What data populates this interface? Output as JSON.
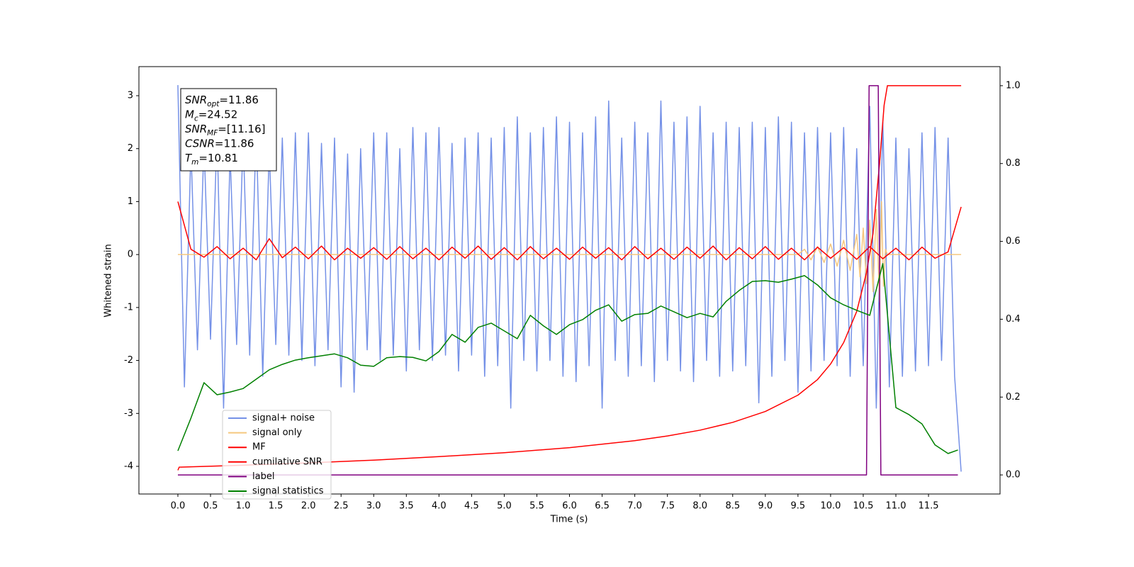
{
  "chart_data": {
    "type": "line",
    "xlabel": "Time (s)",
    "ylabel": "Whitened strain",
    "xlim": [
      -0.597,
      12.596
    ],
    "ylim": [
      -4.522,
      3.549
    ],
    "y2lim": [
      -0.049,
      1.049
    ],
    "xticks": [
      {
        "value": 0,
        "label": "0.0"
      },
      0.5,
      {
        "value": 1,
        "label": "1.0"
      },
      1.5,
      {
        "value": 2,
        "label": "2.0"
      },
      2.5,
      {
        "value": 3,
        "label": "3.0"
      },
      3.5,
      {
        "value": 4,
        "label": "4.0"
      },
      4.5,
      {
        "value": 5,
        "label": "5.0"
      },
      5.5,
      {
        "value": 6,
        "label": "6.0"
      },
      6.5,
      {
        "value": 7,
        "label": "7.0"
      },
      7.5,
      {
        "value": 8,
        "label": "8.0"
      },
      8.5,
      {
        "value": 9,
        "label": "9.0"
      },
      9.5,
      {
        "value": 10,
        "label": "10.0"
      },
      10.5,
      {
        "value": 11,
        "label": "11.0"
      },
      11.5
    ],
    "yticks": [
      -4,
      -3,
      -2,
      -1,
      0,
      1,
      2,
      3
    ],
    "y2ticks": [
      {
        "value": 0,
        "label": "0.0"
      },
      0.2,
      0.4,
      0.6,
      0.8,
      {
        "value": 1,
        "label": "1.0"
      }
    ],
    "legend": "lower left",
    "annotation": [
      {
        "symbol": "SNR",
        "subscript": "opt",
        "text": "=11.86"
      },
      {
        "symbol": "M",
        "subscript": "c",
        "text": "=24.52"
      },
      {
        "symbol": "SNR",
        "subscript": "MF",
        "text": "=[11.16]"
      },
      {
        "symbol": "CSNR",
        "text": "=11.86"
      },
      {
        "symbol": "T",
        "subscript": "m",
        "text": "=10.81"
      }
    ],
    "series": [
      {
        "name": "signal+ noise",
        "color": "#7591e7",
        "x": [
          0,
          0.1,
          0.2,
          0.3,
          0.4,
          0.5,
          0.6,
          0.7,
          0.8,
          0.9,
          1,
          1.1,
          1.2,
          1.3,
          1.4,
          1.5,
          1.6,
          1.7,
          1.8,
          1.9,
          2,
          2.1,
          2.2,
          2.3,
          2.4,
          2.5,
          2.6,
          2.7,
          2.8,
          2.9,
          3,
          3.1,
          3.2,
          3.3,
          3.4,
          3.5,
          3.6,
          3.7,
          3.8,
          3.9,
          4,
          4.1,
          4.2,
          4.3,
          4.4,
          4.5,
          4.6,
          4.7,
          4.8,
          4.9,
          5,
          5.1,
          5.2,
          5.3,
          5.4,
          5.5,
          5.6,
          5.7,
          5.8,
          5.9,
          6,
          6.1,
          6.2,
          6.3,
          6.4,
          6.5,
          6.6,
          6.7,
          6.8,
          6.9,
          7,
          7.1,
          7.2,
          7.3,
          7.4,
          7.5,
          7.6,
          7.7,
          7.8,
          7.9,
          8,
          8.1,
          8.2,
          8.3,
          8.4,
          8.5,
          8.6,
          8.7,
          8.8,
          8.9,
          9,
          9.1,
          9.2,
          9.3,
          9.4,
          9.5,
          9.6,
          9.7,
          9.8,
          9.9,
          10,
          10.1,
          10.2,
          10.3,
          10.4,
          10.5,
          10.6,
          10.7,
          10.8,
          10.9,
          11,
          11.1,
          11.2,
          11.3,
          11.4,
          11.5,
          11.6,
          11.7,
          11.8,
          11.9,
          12
        ],
        "values": [
          3.2,
          -2.5,
          2.0,
          -1.8,
          2.1,
          -1.6,
          2.3,
          -2.9,
          1.9,
          -1.7,
          2.2,
          -1.9,
          2.4,
          -2.3,
          2.0,
          -1.7,
          2.2,
          -1.9,
          2.3,
          -2.0,
          2.3,
          -2.1,
          2.1,
          -1.8,
          2.2,
          -2.5,
          1.9,
          -2.6,
          2.0,
          -1.8,
          2.3,
          -2.0,
          2.3,
          -1.9,
          2.0,
          -2.2,
          2.4,
          -1.8,
          2.3,
          -2.0,
          2.4,
          -1.9,
          2.1,
          -2.2,
          2.2,
          -1.9,
          2.3,
          -2.3,
          2.2,
          -2.1,
          2.4,
          -2.9,
          2.6,
          -2.0,
          2.3,
          -2.2,
          2.4,
          -2.0,
          2.6,
          -2.3,
          2.5,
          -2.4,
          2.3,
          -2.1,
          2.6,
          -2.9,
          2.9,
          -2.0,
          2.2,
          -2.3,
          2.5,
          -2.1,
          2.3,
          -2.4,
          2.9,
          -2.0,
          2.5,
          -2.2,
          2.6,
          -2.4,
          2.8,
          -2.0,
          2.3,
          -2.3,
          2.5,
          -2.2,
          2.4,
          -2.1,
          2.5,
          -2.8,
          2.4,
          -2.3,
          2.6,
          -2.0,
          2.5,
          -2.6,
          2.3,
          -2.2,
          2.4,
          -2.0,
          2.3,
          -2.1,
          2.4,
          -2.3,
          2.0,
          -2.1,
          2.8,
          -2.9,
          2.5,
          -2.5,
          2.2,
          -2.3,
          2.0,
          -2.2,
          2.3,
          -2.1,
          2.4,
          -2.0,
          2.2,
          -2.3,
          -4.1
        ]
      },
      {
        "name": "signal only",
        "color": "#f5c77e",
        "x": [
          0,
          9.5,
          9.6,
          9.7,
          9.8,
          9.9,
          10,
          10.1,
          10.2,
          10.3,
          10.4,
          10.45,
          10.5,
          10.55,
          10.6,
          10.65,
          10.7,
          10.75,
          10.78,
          10.81,
          10.84,
          10.87,
          12
        ],
        "values": [
          0,
          0,
          0.1,
          -0.1,
          0.15,
          -0.15,
          0.2,
          -0.22,
          0.27,
          -0.3,
          0.38,
          -0.42,
          0.5,
          -0.55,
          0.65,
          -0.7,
          0.85,
          -0.9,
          1.0,
          -0.6,
          0.1,
          0,
          0
        ]
      },
      {
        "name": "MF",
        "color": "#ff0000",
        "x": [
          0,
          0.2,
          0.4,
          0.6,
          0.8,
          1,
          1.2,
          1.4,
          1.6,
          1.8,
          2,
          2.2,
          2.4,
          2.6,
          2.8,
          3,
          3.2,
          3.4,
          3.6,
          3.8,
          4,
          4.2,
          4.4,
          4.6,
          4.8,
          5,
          5.2,
          5.4,
          5.6,
          5.8,
          6,
          6.2,
          6.4,
          6.6,
          6.8,
          7,
          7.2,
          7.4,
          7.6,
          7.8,
          8,
          8.2,
          8.4,
          8.6,
          8.8,
          9,
          9.2,
          9.4,
          9.6,
          9.8,
          10,
          10.2,
          10.4,
          10.6,
          10.8,
          11,
          11.2,
          11.4,
          11.6,
          11.8,
          12
        ],
        "values": [
          1.0,
          0.1,
          -0.05,
          0.15,
          -0.08,
          0.12,
          -0.1,
          0.3,
          -0.06,
          0.14,
          -0.08,
          0.16,
          -0.1,
          0.12,
          -0.07,
          0.13,
          -0.09,
          0.15,
          -0.08,
          0.12,
          -0.1,
          0.14,
          -0.07,
          0.16,
          -0.09,
          0.13,
          -0.1,
          0.15,
          -0.08,
          0.12,
          -0.09,
          0.14,
          -0.07,
          0.13,
          -0.1,
          0.15,
          -0.08,
          0.12,
          -0.09,
          0.14,
          -0.07,
          0.16,
          -0.1,
          0.13,
          -0.08,
          0.15,
          -0.09,
          0.12,
          -0.1,
          0.14,
          -0.07,
          0.13,
          -0.09,
          0.15,
          -0.08,
          0.12,
          -0.1,
          0.14,
          -0.07,
          0.05,
          0.9
        ]
      },
      {
        "name": "cumilative SNR",
        "color": "#ff0000",
        "axis": "y2",
        "x": [
          0,
          0.02,
          1,
          2,
          3,
          4,
          5,
          6,
          7,
          7.5,
          8,
          8.5,
          9,
          9.5,
          9.8,
          10,
          10.2,
          10.4,
          10.55,
          10.65,
          10.75,
          10.82,
          10.87,
          12
        ],
        "values": [
          0.012,
          0.02,
          0.025,
          0.031,
          0.038,
          0.047,
          0.057,
          0.07,
          0.088,
          0.1,
          0.115,
          0.135,
          0.163,
          0.205,
          0.245,
          0.285,
          0.34,
          0.42,
          0.52,
          0.62,
          0.8,
          0.95,
          1.0,
          1.0
        ]
      },
      {
        "name": "label",
        "color": "#800080",
        "axis": "y2",
        "x": [
          0,
          10.55,
          10.59,
          10.73,
          10.77,
          11.95
        ],
        "values": [
          0,
          0,
          1,
          1,
          0,
          0
        ]
      },
      {
        "name": "signal statistics",
        "color": "#008000",
        "axis": "y2",
        "x": [
          0,
          0.2,
          0.4,
          0.6,
          0.8,
          1,
          1.2,
          1.4,
          1.6,
          1.8,
          2,
          2.2,
          2.4,
          2.6,
          2.8,
          3,
          3.2,
          3.4,
          3.6,
          3.8,
          4,
          4.2,
          4.4,
          4.6,
          4.8,
          5,
          5.2,
          5.4,
          5.6,
          5.8,
          6,
          6.2,
          6.4,
          6.6,
          6.8,
          7,
          7.2,
          7.4,
          7.6,
          7.8,
          8,
          8.2,
          8.4,
          8.6,
          8.8,
          9,
          9.2,
          9.4,
          9.6,
          9.8,
          10,
          10.2,
          10.4,
          10.6,
          10.8,
          11,
          11.2,
          11.4,
          11.6,
          11.8,
          11.95
        ],
        "values": [
          0.062,
          0.146,
          0.237,
          0.206,
          0.213,
          0.222,
          0.246,
          0.27,
          0.284,
          0.295,
          0.301,
          0.306,
          0.311,
          0.301,
          0.282,
          0.279,
          0.301,
          0.304,
          0.302,
          0.293,
          0.317,
          0.361,
          0.341,
          0.379,
          0.39,
          0.37,
          0.35,
          0.41,
          0.383,
          0.361,
          0.386,
          0.399,
          0.423,
          0.437,
          0.395,
          0.412,
          0.415,
          0.434,
          0.419,
          0.404,
          0.415,
          0.406,
          0.446,
          0.474,
          0.497,
          0.499,
          0.495,
          0.503,
          0.512,
          0.488,
          0.455,
          0.437,
          0.423,
          0.41,
          0.543,
          0.173,
          0.155,
          0.131,
          0.077,
          0.055,
          0.064
        ]
      }
    ]
  }
}
